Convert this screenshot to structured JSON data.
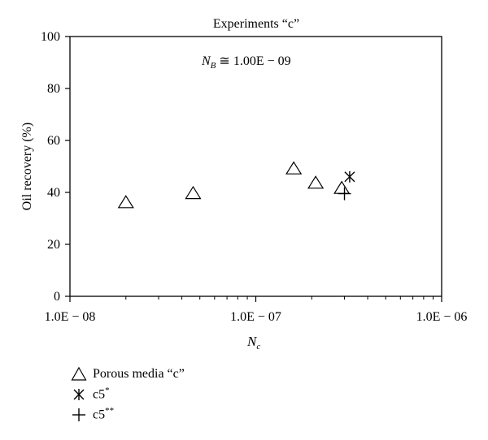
{
  "chart_data": {
    "type": "scatter",
    "title": "Experiments “c”",
    "annotation": {
      "var": "N",
      "sub": "B",
      "rest": " ≅ 1.00E − 09"
    },
    "xlabel": {
      "var": "N",
      "sub": "c"
    },
    "ylabel": "Oil recovery (%)",
    "x_scale": "log",
    "xlim": [
      1e-08,
      1e-06
    ],
    "ylim": [
      0,
      100
    ],
    "x_ticks": [
      {
        "value": 1e-08,
        "label": "1.0E − 08"
      },
      {
        "value": 1e-07,
        "label": "1.0E − 07"
      },
      {
        "value": 1e-06,
        "label": "1.0E − 06"
      }
    ],
    "y_ticks": [
      0,
      20,
      40,
      60,
      80,
      100
    ],
    "grid": false,
    "legend_position": "below",
    "series": [
      {
        "name": "Porous media “c”",
        "marker": "triangle",
        "points": [
          [
            2e-08,
            36
          ],
          [
            4.6e-08,
            39.5
          ],
          [
            1.6e-07,
            49
          ],
          [
            2.1e-07,
            43.5
          ],
          [
            2.9e-07,
            41.5
          ]
        ]
      },
      {
        "name": "c5",
        "name_sup": "*",
        "marker": "asterisk",
        "points": [
          [
            3.2e-07,
            46
          ]
        ]
      },
      {
        "name": "c5",
        "name_sup": "**",
        "marker": "plus",
        "points": [
          [
            3e-07,
            39.5
          ]
        ]
      }
    ]
  }
}
